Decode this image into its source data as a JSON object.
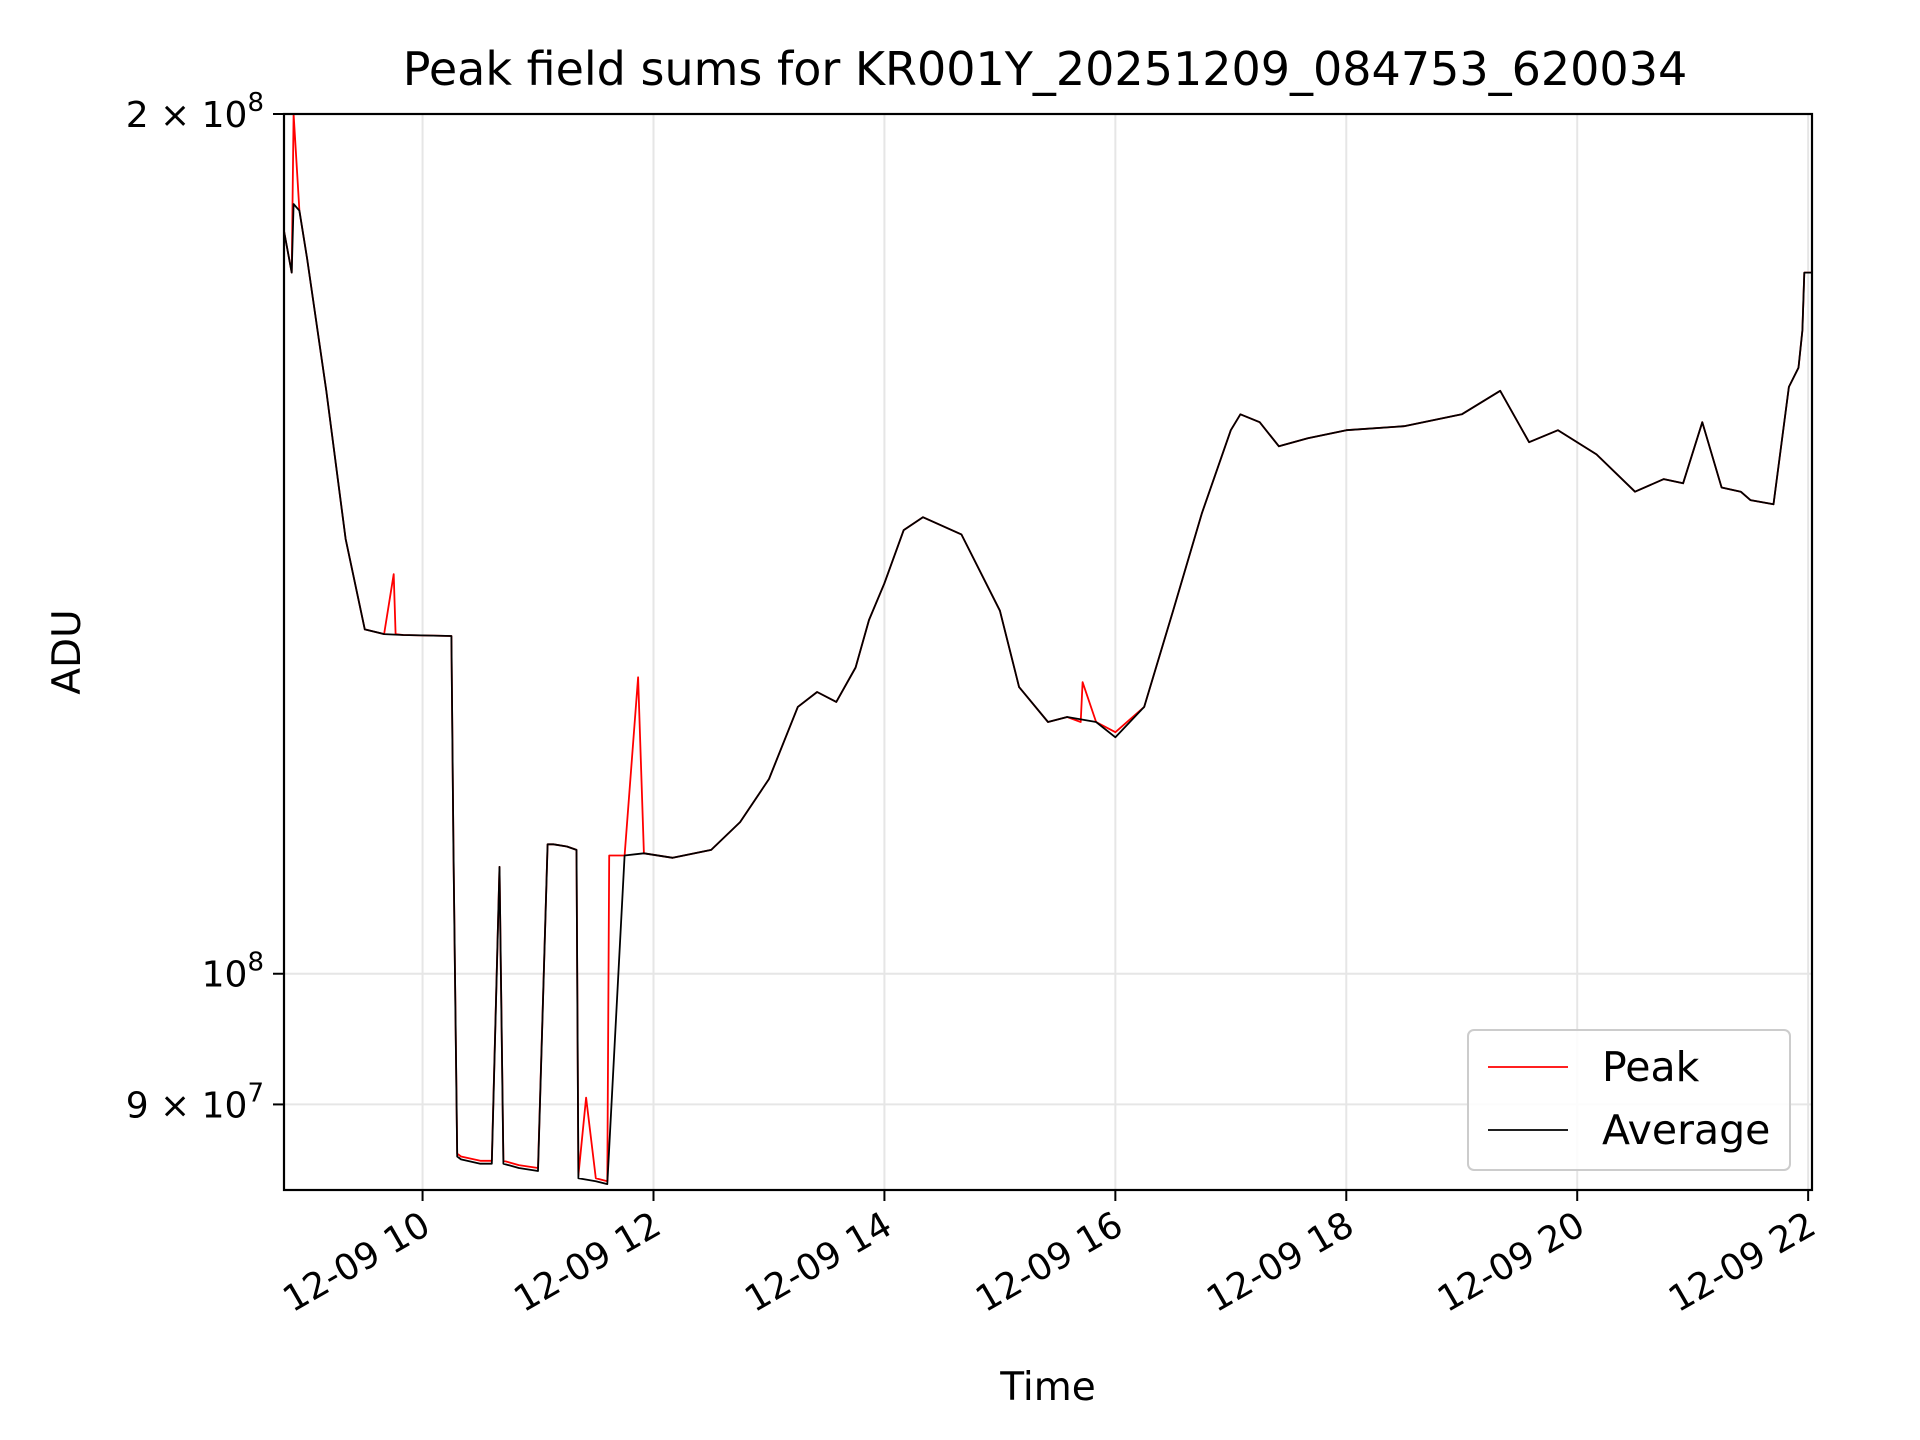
{
  "chart_data": {
    "type": "line",
    "title": "Peak field sums for KR001Y_20251209_084753_620034",
    "xlabel": "Time",
    "ylabel": "ADU",
    "yscale": "log",
    "ylim": [
      84000000,
      200000000
    ],
    "xlim": [
      "2025-12-09 08:48",
      "2025-12-09 22:02"
    ],
    "grid": true,
    "legend": "lower-right",
    "x_ticks": [
      {
        "t": "2025-12-09 10:00",
        "label": "12-09 10"
      },
      {
        "t": "2025-12-09 12:00",
        "label": "12-09 12"
      },
      {
        "t": "2025-12-09 14:00",
        "label": "12-09 14"
      },
      {
        "t": "2025-12-09 16:00",
        "label": "12-09 16"
      },
      {
        "t": "2025-12-09 18:00",
        "label": "12-09 18"
      },
      {
        "t": "2025-12-09 20:00",
        "label": "12-09 20"
      },
      {
        "t": "2025-12-09 22:00",
        "label": "12-09 22"
      }
    ],
    "y_ticks": [
      {
        "value": 90000000,
        "mantissa": "9",
        "times": "×",
        "base": "10",
        "exp": "7"
      },
      {
        "value": 100000000,
        "mantissa": "",
        "times": "",
        "base": "10",
        "exp": "8"
      },
      {
        "value": 200000000,
        "mantissa": "2",
        "times": "×",
        "base": "10",
        "exp": "8"
      }
    ],
    "series": [
      {
        "name": "Peak",
        "color": "#ff0000",
        "x": [
          "2025-12-09 08:48",
          "2025-12-09 08:52",
          "2025-12-09 08:53",
          "2025-12-09 08:56",
          "2025-12-09 09:00",
          "2025-12-09 09:10",
          "2025-12-09 09:20",
          "2025-12-09 09:30",
          "2025-12-09 09:40",
          "2025-12-09 09:45",
          "2025-12-09 09:46",
          "2025-12-09 09:50",
          "2025-12-09 10:15",
          "2025-12-09 10:16",
          "2025-12-09 10:18",
          "2025-12-09 10:20",
          "2025-12-09 10:30",
          "2025-12-09 10:36",
          "2025-12-09 10:40",
          "2025-12-09 10:42",
          "2025-12-09 10:50",
          "2025-12-09 11:00",
          "2025-12-09 11:05",
          "2025-12-09 11:08",
          "2025-12-09 11:15",
          "2025-12-09 11:20",
          "2025-12-09 11:21",
          "2025-12-09 11:25",
          "2025-12-09 11:30",
          "2025-12-09 11:36",
          "2025-12-09 11:37",
          "2025-12-09 11:45",
          "2025-12-09 11:52",
          "2025-12-09 11:55",
          "2025-12-09 12:10",
          "2025-12-09 12:30",
          "2025-12-09 12:45",
          "2025-12-09 13:00",
          "2025-12-09 13:15",
          "2025-12-09 13:25",
          "2025-12-09 13:35",
          "2025-12-09 13:45",
          "2025-12-09 13:52",
          "2025-12-09 14:00",
          "2025-12-09 14:10",
          "2025-12-09 14:20",
          "2025-12-09 14:40",
          "2025-12-09 15:00",
          "2025-12-09 15:10",
          "2025-12-09 15:25",
          "2025-12-09 15:35",
          "2025-12-09 15:42",
          "2025-12-09 15:43",
          "2025-12-09 15:50",
          "2025-12-09 16:00",
          "2025-12-09 16:15",
          "2025-12-09 16:30",
          "2025-12-09 16:45",
          "2025-12-09 17:00",
          "2025-12-09 17:05",
          "2025-12-09 17:15",
          "2025-12-09 17:25",
          "2025-12-09 17:40",
          "2025-12-09 18:00",
          "2025-12-09 18:30",
          "2025-12-09 19:00",
          "2025-12-09 19:20",
          "2025-12-09 19:35",
          "2025-12-09 19:50",
          "2025-12-09 20:10",
          "2025-12-09 20:30",
          "2025-12-09 20:45",
          "2025-12-09 20:55",
          "2025-12-09 21:05",
          "2025-12-09 21:15",
          "2025-12-09 21:25",
          "2025-12-09 21:30",
          "2025-12-09 21:42",
          "2025-12-09 21:50",
          "2025-12-09 21:55",
          "2025-12-09 21:57",
          "2025-12-09 21:58",
          "2025-12-09 22:02"
        ],
        "y": [
          182000000,
          176000000,
          200000000,
          185000000,
          178000000,
          160000000,
          142000000,
          132000000,
          131500000,
          138000000,
          131500000,
          131400000,
          131300000,
          111000000,
          86500000,
          86300000,
          86000000,
          86000000,
          109000000,
          86000000,
          85700000,
          85500000,
          111000000,
          111000000,
          110800000,
          110500000,
          85000000,
          90500000,
          84800000,
          84600000,
          110000000,
          110000000,
          127000000,
          110200000,
          109800000,
          110500000,
          113000000,
          117000000,
          124000000,
          125500000,
          124500000,
          128000000,
          133000000,
          137000000,
          143000000,
          144500000,
          142500000,
          134000000,
          126000000,
          122500000,
          123000000,
          122500000,
          126500000,
          122500000,
          121500000,
          124000000,
          134000000,
          145000000,
          155000000,
          157000000,
          156000000,
          153000000,
          154000000,
          155000000,
          155500000,
          157000000,
          160000000,
          153500000,
          155000000,
          152000000,
          147500000,
          149000000,
          148500000,
          156000000,
          148000000,
          147500000,
          146500000,
          146000000,
          160500000,
          163000000,
          168000000,
          176000000,
          176000000
        ]
      },
      {
        "name": "Average",
        "color": "#000000",
        "x": [
          "2025-12-09 08:48",
          "2025-12-09 08:52",
          "2025-12-09 08:53",
          "2025-12-09 08:56",
          "2025-12-09 09:00",
          "2025-12-09 09:10",
          "2025-12-09 09:20",
          "2025-12-09 09:30",
          "2025-12-09 09:40",
          "2025-12-09 09:50",
          "2025-12-09 10:15",
          "2025-12-09 10:16",
          "2025-12-09 10:18",
          "2025-12-09 10:20",
          "2025-12-09 10:30",
          "2025-12-09 10:36",
          "2025-12-09 10:40",
          "2025-12-09 10:42",
          "2025-12-09 10:50",
          "2025-12-09 11:00",
          "2025-12-09 11:05",
          "2025-12-09 11:08",
          "2025-12-09 11:15",
          "2025-12-09 11:20",
          "2025-12-09 11:21",
          "2025-12-09 11:30",
          "2025-12-09 11:36",
          "2025-12-09 11:45",
          "2025-12-09 11:55",
          "2025-12-09 12:10",
          "2025-12-09 12:30",
          "2025-12-09 12:45",
          "2025-12-09 13:00",
          "2025-12-09 13:15",
          "2025-12-09 13:25",
          "2025-12-09 13:35",
          "2025-12-09 13:45",
          "2025-12-09 13:52",
          "2025-12-09 14:00",
          "2025-12-09 14:10",
          "2025-12-09 14:20",
          "2025-12-09 14:40",
          "2025-12-09 15:00",
          "2025-12-09 15:10",
          "2025-12-09 15:25",
          "2025-12-09 15:35",
          "2025-12-09 15:50",
          "2025-12-09 16:00",
          "2025-12-09 16:15",
          "2025-12-09 16:30",
          "2025-12-09 16:45",
          "2025-12-09 17:00",
          "2025-12-09 17:05",
          "2025-12-09 17:15",
          "2025-12-09 17:25",
          "2025-12-09 17:40",
          "2025-12-09 18:00",
          "2025-12-09 18:30",
          "2025-12-09 19:00",
          "2025-12-09 19:20",
          "2025-12-09 19:35",
          "2025-12-09 19:50",
          "2025-12-09 20:10",
          "2025-12-09 20:30",
          "2025-12-09 20:45",
          "2025-12-09 20:55",
          "2025-12-09 21:05",
          "2025-12-09 21:15",
          "2025-12-09 21:25",
          "2025-12-09 21:30",
          "2025-12-09 21:42",
          "2025-12-09 21:50",
          "2025-12-09 21:55",
          "2025-12-09 21:57",
          "2025-12-09 21:58",
          "2025-12-09 22:02"
        ],
        "y": [
          182000000,
          176000000,
          186000000,
          185000000,
          178000000,
          160000000,
          142000000,
          132000000,
          131500000,
          131400000,
          131300000,
          111000000,
          86300000,
          86100000,
          85800000,
          85800000,
          109000000,
          85800000,
          85500000,
          85300000,
          111000000,
          111000000,
          110800000,
          110500000,
          84800000,
          84600000,
          84400000,
          110000000,
          110200000,
          109800000,
          110500000,
          113000000,
          117000000,
          124000000,
          125500000,
          124500000,
          128000000,
          133000000,
          137000000,
          143000000,
          144500000,
          142500000,
          134000000,
          126000000,
          122500000,
          123000000,
          122500000,
          121000000,
          124000000,
          134000000,
          145000000,
          155000000,
          157000000,
          156000000,
          153000000,
          154000000,
          155000000,
          155500000,
          157000000,
          160000000,
          153500000,
          155000000,
          152000000,
          147500000,
          149000000,
          148500000,
          156000000,
          148000000,
          147500000,
          146500000,
          146000000,
          160500000,
          163000000,
          168000000,
          176000000,
          176000000
        ]
      }
    ]
  }
}
